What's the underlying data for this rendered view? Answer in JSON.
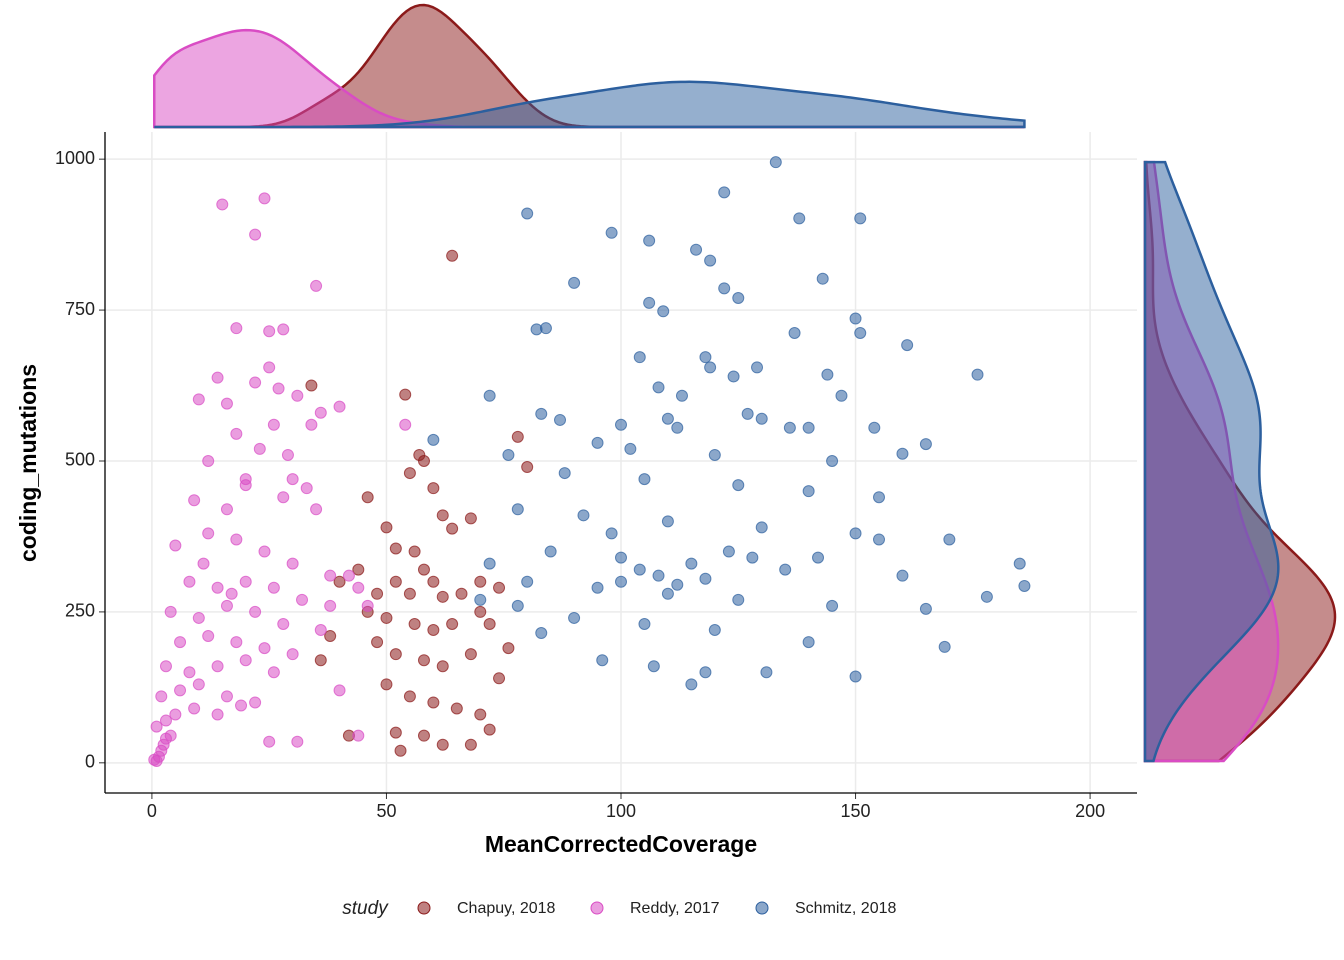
{
  "chart_data": {
    "type": "scatter",
    "x_label": "MeanCorrectedCoverage",
    "y_label": "coding_mutations",
    "xlim": [
      -10,
      210
    ],
    "ylim": [
      -50,
      1045
    ],
    "xticks": [
      0,
      50,
      100,
      150,
      200
    ],
    "yticks": [
      0,
      250,
      500,
      750,
      1000
    ],
    "grid": true,
    "legend_title": "study",
    "legend_position": "bottom",
    "marginal": "density",
    "series": [
      {
        "name": "Chapuy, 2018",
        "color": "#8b1a1a",
        "x": [
          54,
          57,
          58,
          55,
          60,
          62,
          68,
          64,
          50,
          52,
          56,
          58,
          60,
          52,
          48,
          55,
          62,
          66,
          70,
          74,
          46,
          50,
          56,
          60,
          64,
          70,
          72,
          76,
          48,
          52,
          58,
          62,
          68,
          74,
          50,
          55,
          60,
          65,
          70,
          72,
          52,
          58,
          62,
          53,
          68,
          42,
          44,
          38,
          36,
          34,
          80,
          78,
          64,
          46,
          40
        ],
        "values": [
          610,
          510,
          500,
          480,
          455,
          410,
          405,
          388,
          390,
          355,
          350,
          320,
          300,
          300,
          280,
          280,
          275,
          280,
          300,
          290,
          250,
          240,
          230,
          220,
          230,
          250,
          230,
          190,
          200,
          180,
          170,
          160,
          180,
          140,
          130,
          110,
          100,
          90,
          80,
          55,
          50,
          45,
          30,
          20,
          30,
          45,
          320,
          210,
          170,
          625,
          490,
          540,
          840,
          440,
          300
        ]
      },
      {
        "name": "Reddy, 2017",
        "color": "#d94cc4",
        "x": [
          15,
          24,
          22,
          35,
          18,
          25,
          28,
          25,
          14,
          22,
          31,
          10,
          16,
          40,
          26,
          54,
          36,
          18,
          23,
          29,
          12,
          20,
          30,
          9,
          16,
          28,
          35,
          5,
          12,
          18,
          24,
          30,
          38,
          44,
          8,
          14,
          20,
          26,
          32,
          4,
          10,
          16,
          22,
          28,
          36,
          6,
          12,
          18,
          24,
          30,
          3,
          8,
          14,
          20,
          26,
          2,
          6,
          10,
          16,
          22,
          1,
          3,
          5,
          9,
          14,
          0.5,
          1,
          1.5,
          2,
          2.5,
          3,
          4,
          19,
          25,
          31,
          44,
          38,
          42,
          34,
          46,
          40,
          20,
          27,
          33,
          11,
          17
        ],
        "values": [
          925,
          935,
          875,
          790,
          720,
          715,
          718,
          655,
          638,
          630,
          608,
          602,
          595,
          590,
          560,
          560,
          580,
          545,
          520,
          510,
          500,
          470,
          470,
          435,
          420,
          440,
          420,
          360,
          380,
          370,
          350,
          330,
          310,
          290,
          300,
          290,
          300,
          290,
          270,
          250,
          240,
          260,
          250,
          230,
          220,
          200,
          210,
          200,
          190,
          180,
          160,
          150,
          160,
          170,
          150,
          110,
          120,
          130,
          110,
          100,
          60,
          70,
          80,
          90,
          80,
          5,
          3,
          10,
          20,
          30,
          40,
          45,
          95,
          35,
          35,
          45,
          260,
          310,
          560,
          260,
          120,
          460,
          620,
          455,
          330,
          280
        ]
      },
      {
        "name": "Schmitz, 2018",
        "color": "#2c5f9e",
        "x": [
          133,
          122,
          80,
          138,
          151,
          98,
          106,
          116,
          119,
          90,
          143,
          122,
          125,
          106,
          109,
          84,
          82,
          150,
          137,
          151,
          161,
          104,
          118,
          119,
          129,
          124,
          144,
          176,
          108,
          113,
          147,
          72,
          127,
          83,
          87,
          100,
          110,
          130,
          136,
          140,
          154,
          112,
          165,
          60,
          95,
          102,
          120,
          145,
          160,
          76,
          88,
          105,
          125,
          140,
          155,
          78,
          92,
          110,
          130,
          150,
          170,
          85,
          100,
          115,
          135,
          160,
          185,
          186,
          178,
          80,
          95,
          110,
          125,
          145,
          165,
          90,
          105,
          120,
          140,
          169,
          96,
          107,
          118,
          131,
          150,
          115,
          83,
          78,
          72,
          70,
          108,
          112,
          118,
          100,
          104,
          123,
          128,
          98,
          142,
          155
        ],
        "values": [
          995,
          945,
          910,
          902,
          902,
          878,
          865,
          850,
          832,
          795,
          802,
          786,
          770,
          762,
          748,
          720,
          718,
          736,
          712,
          712,
          692,
          672,
          672,
          655,
          655,
          640,
          643,
          643,
          622,
          608,
          608,
          608,
          578,
          578,
          568,
          560,
          570,
          570,
          555,
          555,
          555,
          555,
          528,
          535,
          530,
          520,
          510,
          500,
          512,
          510,
          480,
          470,
          460,
          450,
          440,
          420,
          410,
          400,
          390,
          380,
          370,
          350,
          340,
          330,
          320,
          310,
          330,
          293,
          275,
          300,
          290,
          280,
          270,
          260,
          255,
          240,
          230,
          220,
          200,
          192,
          170,
          160,
          150,
          150,
          143,
          130,
          215,
          260,
          330,
          270,
          310,
          295,
          305,
          300,
          320,
          350,
          340,
          380,
          340,
          370
        ]
      }
    ]
  }
}
